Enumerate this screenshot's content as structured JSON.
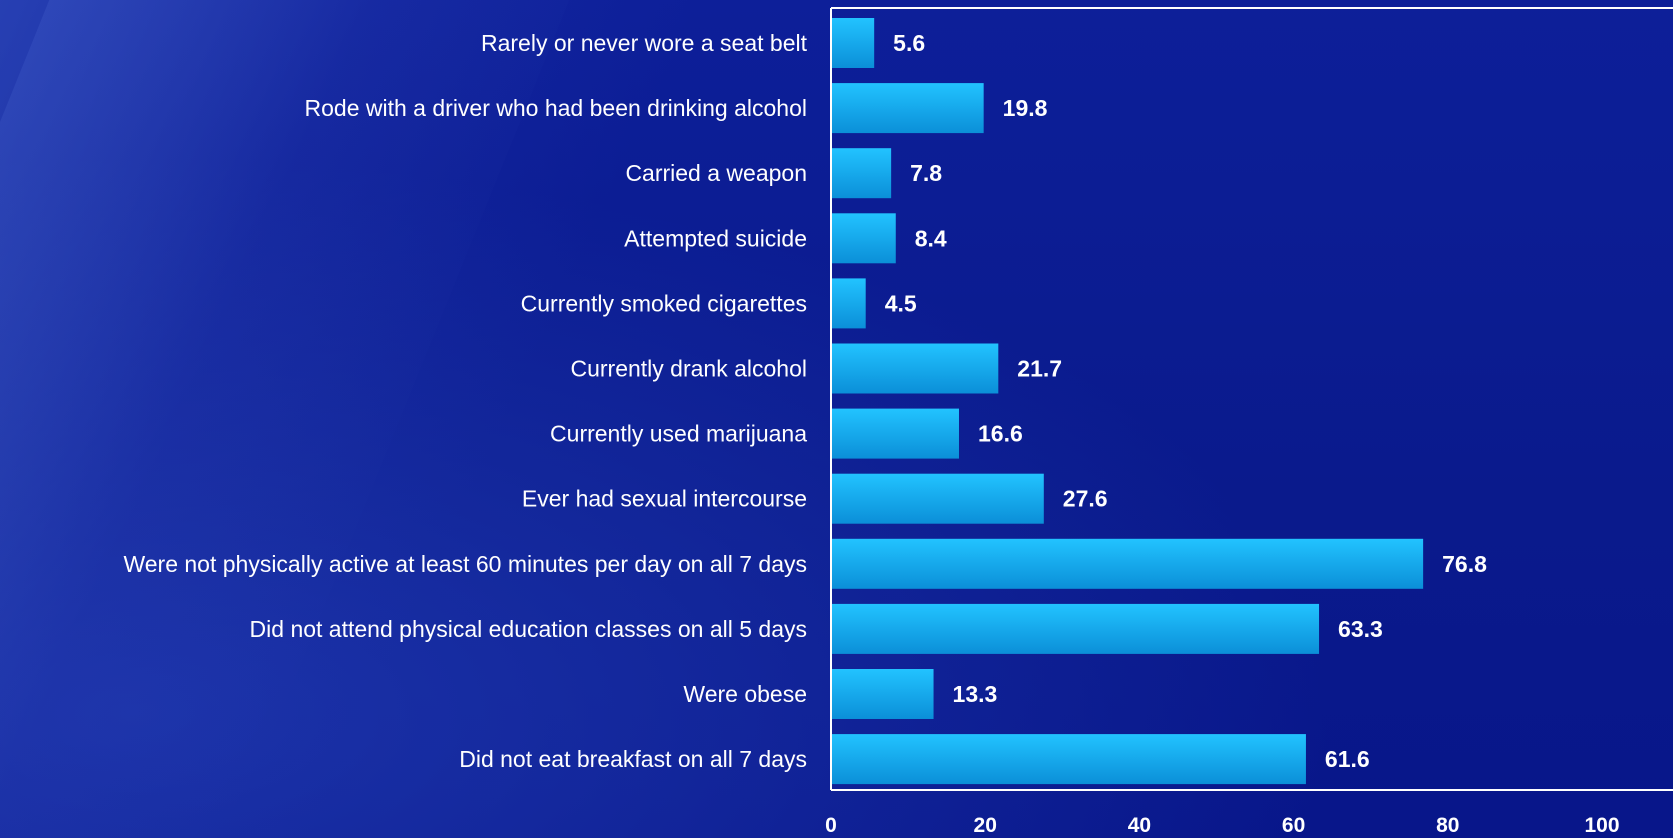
{
  "colors": {
    "background": "#0a1a8c",
    "bar_top": "#22c3ff",
    "bar_bottom": "#0b8fd8",
    "axis": "#ffffff",
    "text": "#ffffff"
  },
  "chart_data": {
    "type": "bar",
    "orientation": "horizontal",
    "categories": [
      "Rarely or never wore a seat belt",
      "Rode with a driver who had been drinking alcohol",
      "Carried a weapon",
      "Attempted suicide",
      "Currently smoked cigarettes",
      "Currently drank alcohol",
      "Currently used marijuana",
      "Ever had sexual intercourse",
      "Were not physically active at least 60 minutes per day on all 7 days",
      "Did not attend physical education classes on all 5 days",
      "Were obese",
      "Did not eat breakfast on all 7 days"
    ],
    "values": [
      5.6,
      19.8,
      7.8,
      8.4,
      4.5,
      21.7,
      16.6,
      27.6,
      76.8,
      63.3,
      13.3,
      61.6
    ],
    "value_labels": [
      "5.6",
      "19.8",
      "7.8",
      "8.4",
      "4.5",
      "21.7",
      "16.6",
      "27.6",
      "76.8",
      "63.3",
      "13.3",
      "61.6"
    ],
    "xlim": [
      0,
      100
    ],
    "xticks": [
      "0",
      "20",
      "40",
      "60",
      "80",
      "100"
    ],
    "title": "",
    "xlabel": "",
    "ylabel": "",
    "grid": false,
    "legend": "none"
  }
}
